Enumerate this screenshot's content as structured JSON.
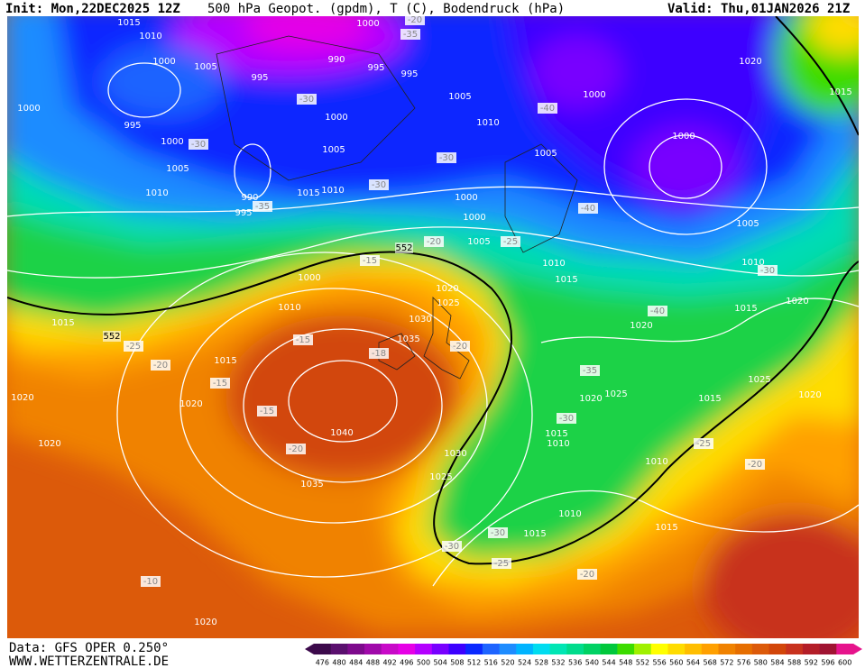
{
  "header": {
    "init": "Init: Mon,22DEC2025 12Z",
    "title": "500 hPa Geopot. (gpdm), T (C), Bodendruck (hPa)",
    "valid": "Valid: Thu,01JAN2026 21Z"
  },
  "map": {
    "pressure_labels": [
      1015,
      1010,
      1000,
      1005,
      995,
      1000,
      995,
      1000,
      1005,
      1010,
      990,
      995,
      1015,
      1010,
      1005,
      1000,
      990,
      995,
      995,
      1000,
      1005,
      1010,
      1005,
      1000,
      1020,
      1015,
      1000,
      1000,
      1000,
      1005,
      1010,
      1015,
      1010,
      1005,
      1000,
      1010,
      1015,
      1020,
      1025,
      1030,
      1035,
      1015,
      1020,
      1020,
      1040,
      1020,
      1030,
      1025,
      1035,
      1020,
      1020,
      1025,
      1015,
      1015,
      1010,
      1010,
      1010,
      1015,
      1015,
      1025,
      1020,
      1015,
      1020,
      1020
    ],
    "temperature_labels": [
      -20,
      -35,
      -30,
      -30,
      -35,
      -30,
      -30,
      -40,
      -40,
      -25,
      -20,
      -15,
      -25,
      -20,
      -15,
      -18,
      -20,
      -15,
      -15,
      -20,
      -35,
      -30,
      -40,
      -30,
      -25,
      -20,
      -30,
      -30,
      -25,
      -20,
      -10
    ],
    "contour_552_labels": [
      552,
      552
    ]
  },
  "footer": {
    "data_source": "Data: GFS OPER 0.250°",
    "website": "WWW.WETTERZENTRALE.DE"
  },
  "colorbar": {
    "values": [
      476,
      480,
      484,
      488,
      492,
      496,
      500,
      504,
      508,
      512,
      516,
      520,
      524,
      528,
      532,
      536,
      540,
      544,
      548,
      552,
      556,
      560,
      564,
      568,
      572,
      576,
      580,
      584,
      588,
      592,
      596,
      600
    ],
    "colors": [
      "#3c0a4b",
      "#5a0f6e",
      "#7d0a8c",
      "#a00aaa",
      "#c80ac8",
      "#e600e6",
      "#b400ff",
      "#7800ff",
      "#3c00ff",
      "#0a28ff",
      "#1e64ff",
      "#1e8cff",
      "#00b4ff",
      "#00dcf0",
      "#00e6b4",
      "#00dc8c",
      "#00d264",
      "#00c83c",
      "#3cdc00",
      "#a0f000",
      "#ffff00",
      "#ffdc00",
      "#ffbe00",
      "#ffa000",
      "#f08200",
      "#e66e00",
      "#dc5a0a",
      "#d2460a",
      "#c8321e",
      "#b41e28",
      "#a01432",
      "#e6148c"
    ]
  }
}
